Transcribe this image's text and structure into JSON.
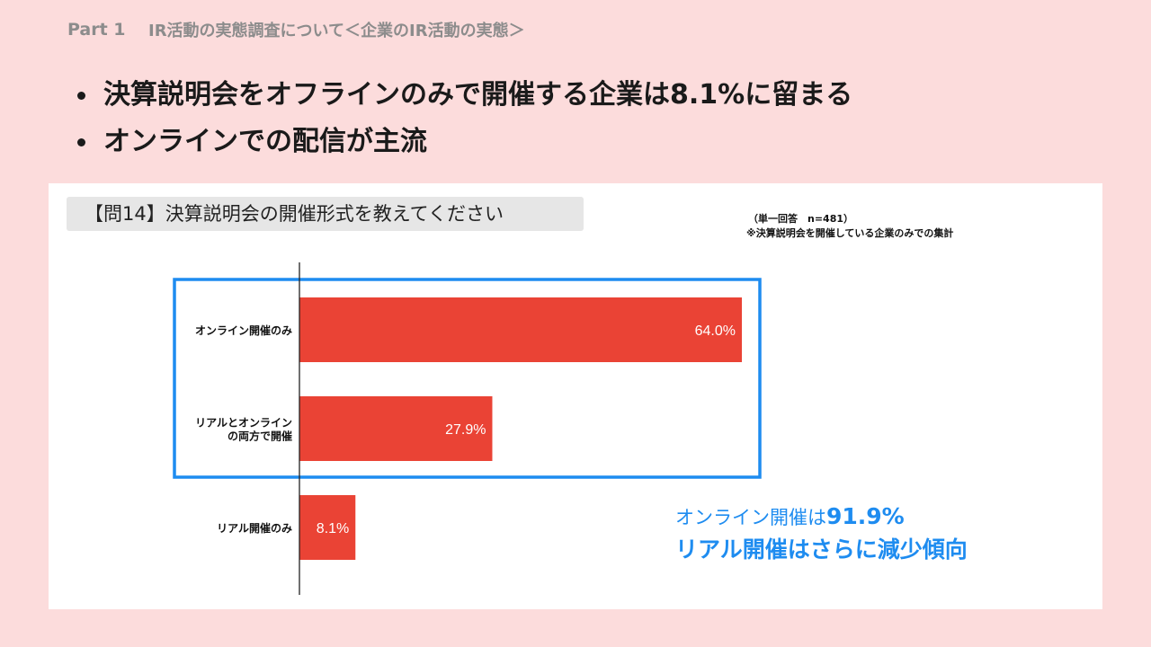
{
  "header": {
    "part": "Part 1",
    "subtitle": "IR活動の実態調査について＜企業のIR活動の実態＞"
  },
  "bullets": [
    "決算説明会をオフラインのみで開催する企業は8.1%に留まる",
    "オンラインでの配信が主流"
  ],
  "question": "【問14】決算説明会の開催形式を教えてください",
  "note": {
    "line1": "（単一回答　n=481）",
    "line2": "※決算説明会を開催している企業のみでの集計"
  },
  "callout": {
    "line1_prefix": "オンライン開催は",
    "line1_value": "91.9%",
    "line2": "リアル開催はさらに減少傾向"
  },
  "colors": {
    "bar": "#ea4335",
    "highlight": "#1e8cf0",
    "background": "#fcdcdc"
  },
  "chart_data": {
    "type": "bar",
    "orientation": "horizontal",
    "categories": [
      [
        "オンライン開催のみ"
      ],
      [
        "リアルとオンライン",
        "の両方で開催"
      ],
      [
        "リアル開催のみ"
      ]
    ],
    "values": [
      64.0,
      27.9,
      8.1
    ],
    "value_labels": [
      "64.0%",
      "27.9%",
      "8.1%"
    ],
    "xlim": [
      0,
      100
    ],
    "grid": false,
    "highlighted_categories": [
      0,
      1
    ]
  }
}
